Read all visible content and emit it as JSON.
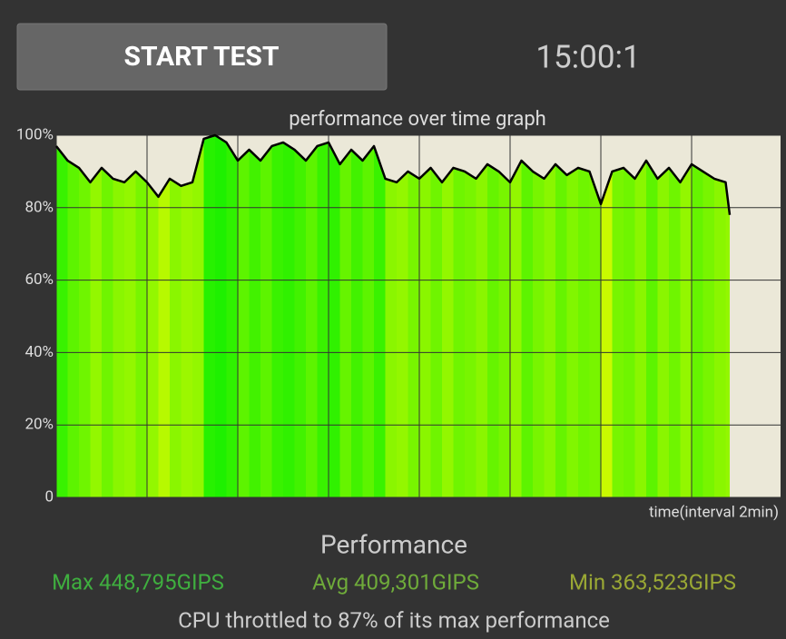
{
  "button": {
    "label": "START TEST"
  },
  "timer": "15:00:1",
  "chart_data": {
    "type": "area",
    "title": "performance over time graph",
    "x_label": "time(interval 2min)",
    "x": [
      0,
      0.25,
      0.5,
      0.75,
      1,
      1.25,
      1.5,
      1.75,
      2,
      2.25,
      2.5,
      2.75,
      3,
      3.25,
      3.5,
      3.75,
      4,
      4.25,
      4.5,
      4.75,
      5,
      5.25,
      5.5,
      5.75,
      6,
      6.25,
      6.5,
      6.75,
      7,
      7.25,
      7.5,
      7.75,
      8,
      8.25,
      8.5,
      8.75,
      9,
      9.25,
      9.5,
      9.75,
      10,
      10.25,
      10.5,
      10.75,
      11,
      11.25,
      11.5,
      11.75,
      12,
      12.25,
      12.5,
      12.75,
      13,
      13.25,
      13.5,
      13.75,
      14,
      14.25,
      14.5,
      14.75,
      14.84
    ],
    "values": [
      97,
      93,
      91,
      87,
      91,
      88,
      87,
      90,
      87,
      83,
      88,
      86,
      87,
      99,
      100,
      98,
      93,
      96,
      93,
      97,
      98,
      96,
      93,
      97,
      98,
      92,
      96,
      93,
      97,
      88,
      87,
      90,
      88,
      91,
      87,
      91,
      90,
      88,
      92,
      90,
      87,
      93,
      90,
      88,
      92,
      89,
      91,
      90,
      81,
      90,
      91,
      88,
      93,
      88,
      91,
      87,
      92,
      90,
      88,
      87,
      78
    ],
    "color": "#000000",
    "xlim": [
      0,
      15.96
    ],
    "xticks": [
      0,
      2,
      4,
      6,
      8,
      10,
      12,
      14
    ],
    "ylim": [
      0,
      100
    ],
    "yticks": [
      0,
      {
        "value": 20,
        "label": "20%"
      },
      {
        "value": 40,
        "label": "40%"
      },
      {
        "value": 60,
        "label": "60%"
      },
      {
        "value": 80,
        "label": "80%"
      },
      {
        "value": 100,
        "label": "100%"
      }
    ],
    "grid": true
  },
  "stats": {
    "heading": "Performance",
    "max": "Max 448,795GIPS",
    "avg": "Avg 409,301GIPS",
    "min": "Min 363,523GIPS",
    "summary": "CPU throttled to 87% of its max performance"
  }
}
